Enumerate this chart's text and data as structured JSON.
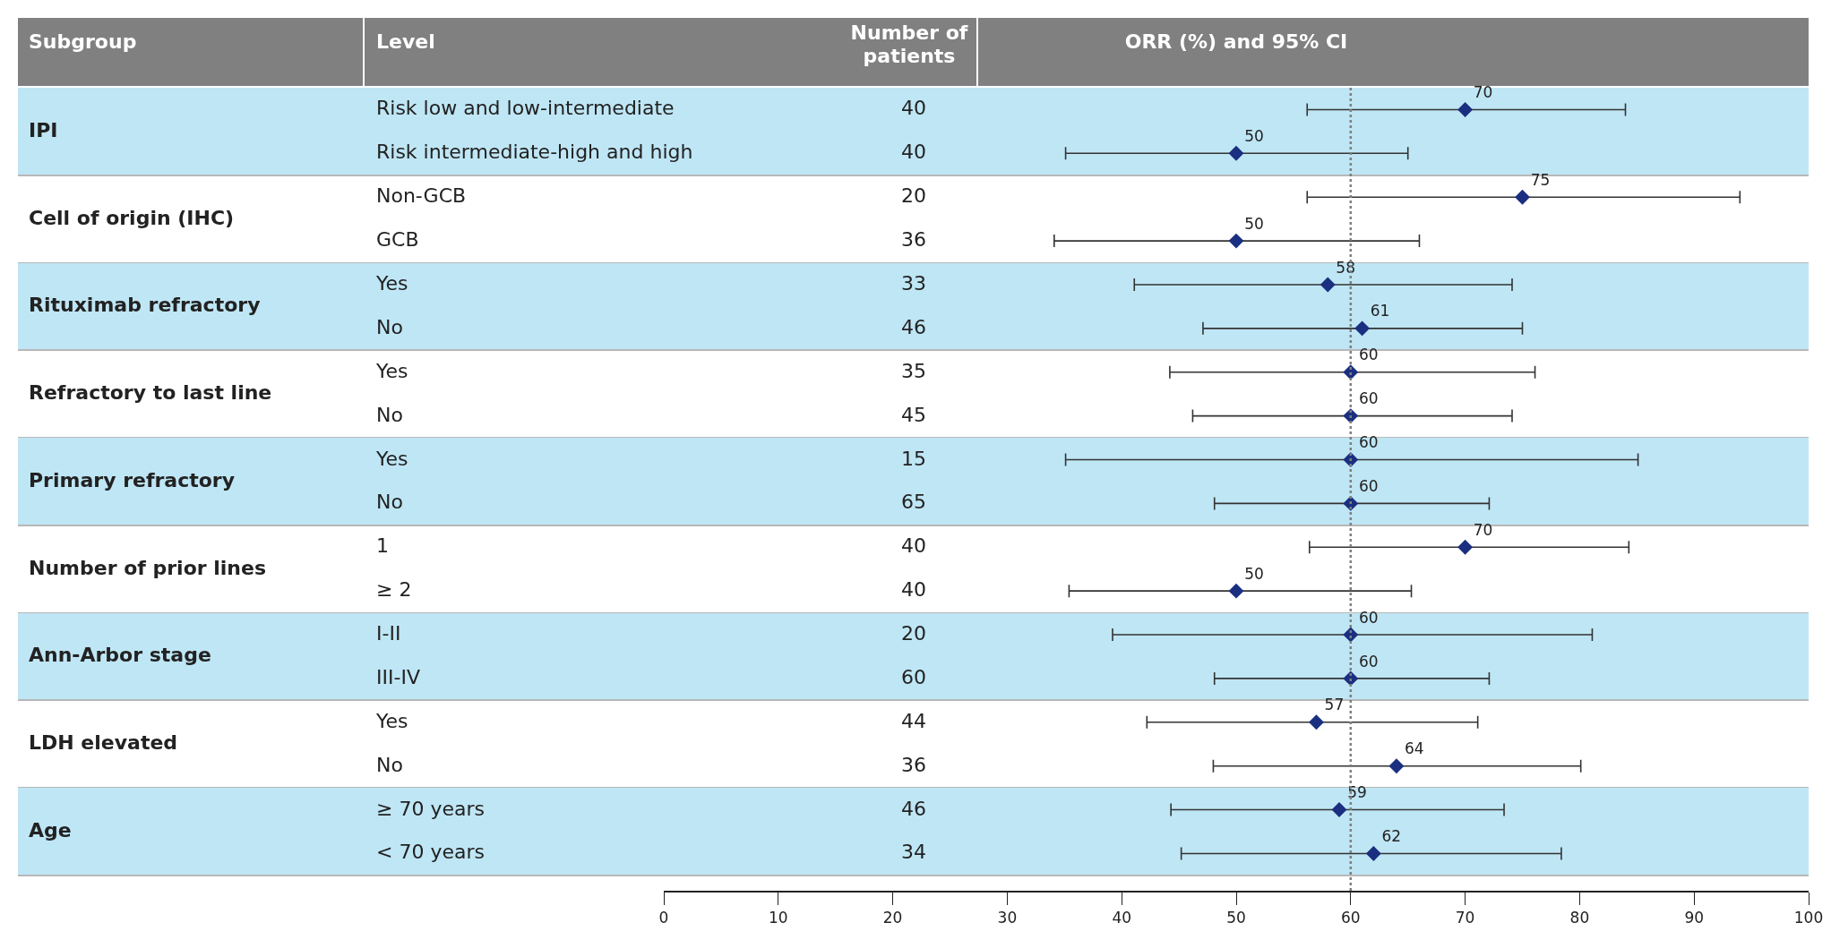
{
  "chart_data": [
    {
      "type": "other",
      "xlabel": "Number of patients",
      "annotations": [
        "Subgroup",
        "IPI",
        "Cell of origin (IHC)",
        "Rituximab refractory",
        "Refractory to last line",
        "Primary refractory",
        "Number of prior lines",
        "Ann-Arbor stage",
        "LDH elevated",
        "Age"
      ],
      "values": [
        40,
        40,
        20,
        36,
        33,
        46,
        35,
        45,
        15,
        65,
        40,
        40,
        20,
        60,
        44,
        36,
        46,
        34
      ],
      "data_labels": true
    },
    {
      "type": "scatter",
      "orientation": "horizontal",
      "title": "ORR (%) and 95% CI",
      "ylabel": "Level",
      "categories": [
        "Risk low and low-intermediate",
        "Risk intermediate-high and high",
        "Non-GCB",
        "GCB",
        "Yes",
        "No",
        "Yes",
        "No",
        "Yes",
        "No",
        "1",
        "≥ 2",
        "I-II",
        "III-IV",
        "Yes",
        "No",
        "≥ 70 years",
        "< 70 years"
      ],
      "color": "#1a2f80",
      "values": [
        70,
        50,
        75,
        50,
        58,
        61,
        60,
        60,
        60,
        60,
        70,
        50,
        60,
        60,
        57,
        64,
        59,
        62
      ],
      "errors": [
        [
          56.2,
          84
        ],
        [
          35.1,
          65
        ],
        [
          56.2,
          94
        ],
        [
          34.1,
          66
        ],
        [
          41.1,
          74.1
        ],
        [
          47.1,
          75
        ],
        [
          44.2,
          76.1
        ],
        [
          46.2,
          74.1
        ],
        [
          35.1,
          85.1
        ],
        [
          48.1,
          72.1
        ],
        [
          56.4,
          84.3
        ],
        [
          35.4,
          65.3
        ],
        [
          39.2,
          81.1
        ],
        [
          48.1,
          72.1
        ],
        [
          42.2,
          71.1
        ],
        [
          48,
          80.1
        ],
        [
          44.3,
          73.4
        ],
        [
          45.2,
          78.4
        ]
      ],
      "marker": "diamond",
      "data_labels": true,
      "xlim": [
        0,
        100
      ],
      "xticks": [
        0,
        10,
        20,
        30,
        40,
        50,
        60,
        70,
        80,
        90,
        100
      ],
      "ref_lines": [
        {
          "axis": "x",
          "value": 60,
          "line_style": "dotted",
          "color": "#7f7f7f"
        }
      ]
    }
  ]
}
